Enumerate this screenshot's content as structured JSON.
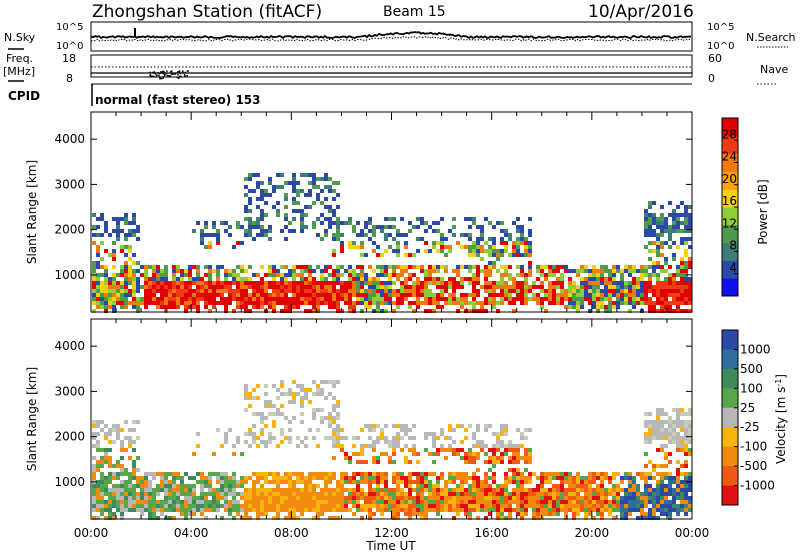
{
  "header": {
    "title": "Zhongshan Station (fitACF)",
    "beam": "Beam 15",
    "date": "10/Apr/2016"
  },
  "strip_noise": {
    "left_label": "N.Sky",
    "right_label": "N.Search",
    "left_ticks": [
      "10^5",
      "10^0"
    ],
    "right_ticks": [
      "10^5",
      "10^0"
    ]
  },
  "strip_freq": {
    "left_label_1": "Freq.",
    "left_label_2": "[MHz]",
    "right_label": "Nave",
    "left_ticks": [
      "18",
      "8"
    ],
    "right_ticks": [
      "60",
      "0"
    ]
  },
  "strip_cpid": {
    "left_label": "CPID",
    "mode_text": "normal (fast stereo) 153"
  },
  "chart_data": [
    {
      "type": "heatmap",
      "name": "power",
      "ylabel": "Slant Range [km]",
      "xlabel": "",
      "ylim": [
        180,
        4600
      ],
      "yticks": [
        "1000",
        "2000",
        "3000",
        "4000"
      ],
      "x_ticks": [
        "00:00",
        "04:00",
        "08:00",
        "12:00",
        "16:00",
        "20:00",
        "00:00"
      ],
      "colorbar": {
        "label": "Power [dB]",
        "ticks": [
          "4",
          "8",
          "12",
          "16",
          "20",
          "24",
          "28"
        ],
        "colors": [
          "#1010ee",
          "#2b4aa8",
          "#3e7d77",
          "#4f9a4f",
          "#8fcc3a",
          "#f4d010",
          "#f5a00c",
          "#f07a10",
          "#ee3b14",
          "#e00000"
        ]
      }
    },
    {
      "type": "heatmap",
      "name": "velocity",
      "ylabel": "Slant Range [km]",
      "xlabel": "Time UT",
      "ylim": [
        180,
        4600
      ],
      "yticks": [
        "1000",
        "2000",
        "3000",
        "4000"
      ],
      "x_ticks": [
        "00:00",
        "04:00",
        "08:00",
        "12:00",
        "16:00",
        "20:00",
        "00:00"
      ],
      "colorbar": {
        "label": "Velocity [m s^-1]",
        "ticks": [
          "1000",
          "500",
          "100",
          "25",
          "-25",
          "-100",
          "-500",
          "-1000"
        ],
        "colors": [
          "#2a4aa6",
          "#2f6e9a",
          "#3d8a5d",
          "#58a64a",
          "#b7b7b7",
          "#f5b40e",
          "#f28a10",
          "#ee5a14",
          "#e01010"
        ]
      }
    }
  ]
}
